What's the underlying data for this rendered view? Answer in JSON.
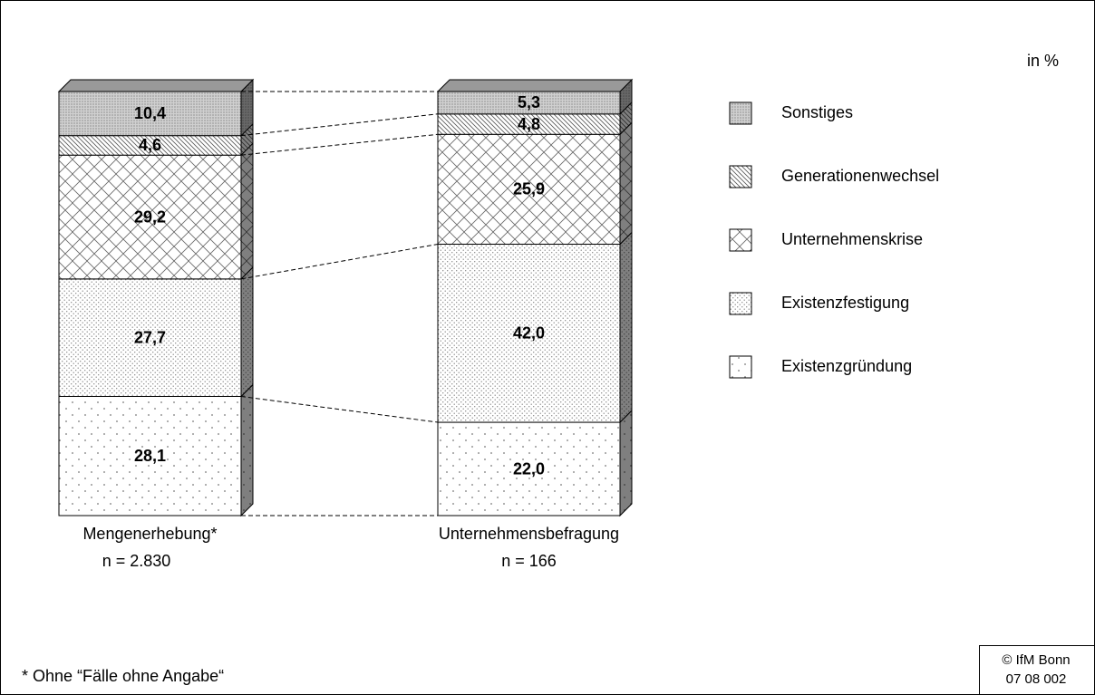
{
  "chart_data": {
    "type": "stacked-bar-3d",
    "annotation_unit": "in %",
    "categories": [
      "Mengenerhebung*",
      "Unternehmensbefragung"
    ],
    "sample_sizes": [
      "n = 2.830",
      "n = 166"
    ],
    "series": [
      {
        "name": "Existenzgründung",
        "values": [
          28.1,
          22.0
        ],
        "value_labels": [
          "28,1",
          "22,0"
        ]
      },
      {
        "name": "Existenzfestigung",
        "values": [
          27.7,
          42.0
        ],
        "value_labels": [
          "27,7",
          "42,0"
        ]
      },
      {
        "name": "Unternehmenskrise",
        "values": [
          29.2,
          25.9
        ],
        "value_labels": [
          "29,2",
          "25,9"
        ]
      },
      {
        "name": "Generationenwechsel",
        "values": [
          4.6,
          4.8
        ],
        "value_labels": [
          "4,6",
          "4,8"
        ]
      },
      {
        "name": "Sonstiges",
        "values": [
          10.4,
          5.3
        ],
        "value_labels": [
          "10,4",
          "5,3"
        ]
      }
    ],
    "footnote": "* Ohne “Fälle ohne Angabe“",
    "source": [
      "© IfM Bonn",
      "07 08 002"
    ]
  }
}
